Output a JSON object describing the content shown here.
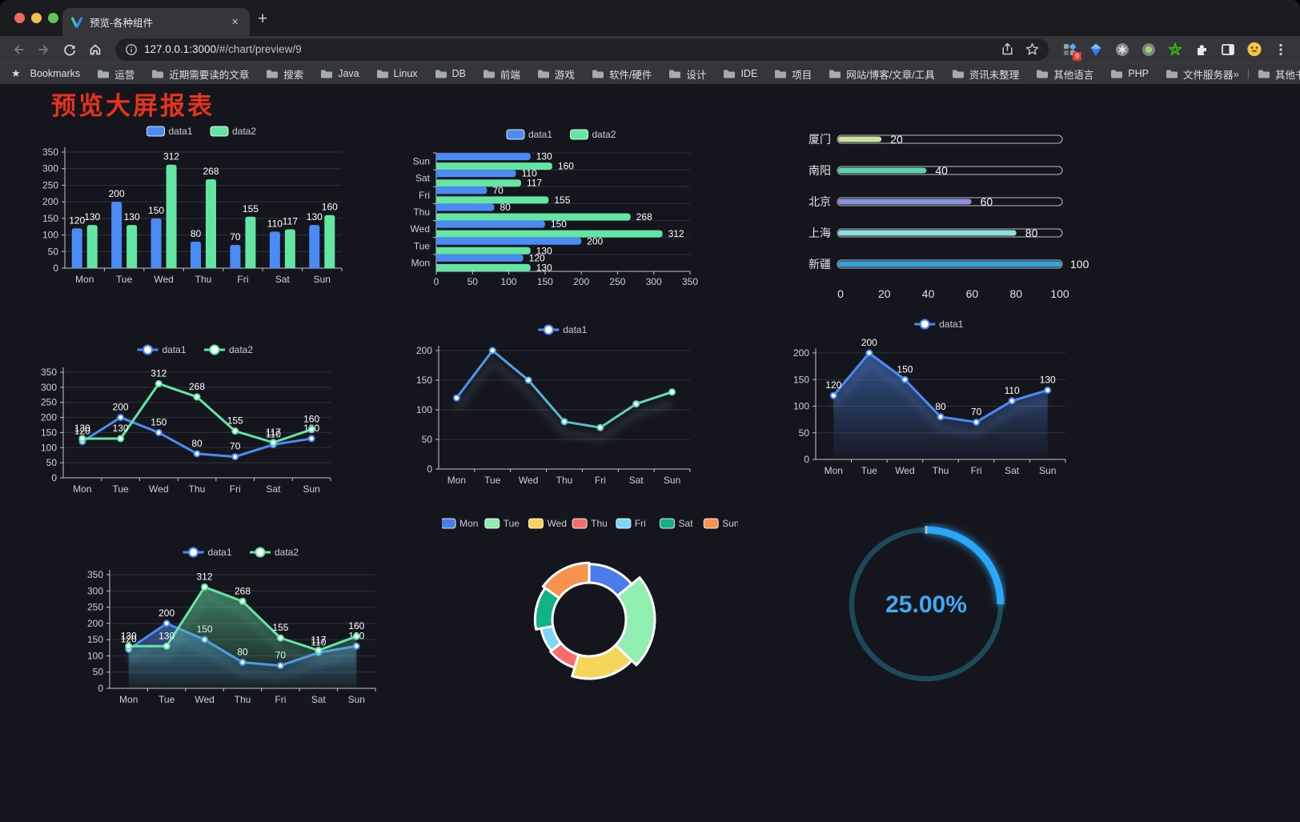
{
  "browser": {
    "tab_title": "预览-各种组件",
    "tab_close": "×",
    "new_tab": "+",
    "url_host": "127.0.0.1:3000",
    "url_path": "/#/chart/preview/9",
    "extension_badge": "9",
    "bookmarks_label": "Bookmarks",
    "bookmarks": [
      "运营",
      "近期需要读的文章",
      "搜索",
      "Java",
      "Linux",
      "DB",
      "前端",
      "游戏",
      "软件/硬件",
      "设计",
      "IDE",
      "项目",
      "网站/博客/文章/工具",
      "资讯未整理",
      "其他语言",
      "PHP",
      "文件服务器"
    ],
    "bookmarks_overflow": "»",
    "other_bookmarks": "其他书签"
  },
  "page": {
    "title": "预览大屏报表",
    "title_color": "#e5331c",
    "background": "#15161d"
  },
  "chart_data": [
    {
      "type": "bar",
      "legend_position": "top",
      "grid": true,
      "categories": [
        "Mon",
        "Tue",
        "Wed",
        "Thu",
        "Fri",
        "Sat",
        "Sun"
      ],
      "series": [
        {
          "name": "data1",
          "color": "#4b8bf5",
          "values": [
            120,
            200,
            150,
            80,
            70,
            110,
            130
          ]
        },
        {
          "name": "data2",
          "color": "#63e6a3",
          "values": [
            130,
            130,
            312,
            268,
            155,
            117,
            160
          ]
        }
      ],
      "ylim": [
        0,
        350
      ],
      "yticks": [
        0,
        50,
        100,
        150,
        200,
        250,
        300,
        350
      ],
      "labels": true
    },
    {
      "type": "hbar",
      "legend_position": "top",
      "grid": true,
      "categories": [
        "Mon",
        "Tue",
        "Wed",
        "Thu",
        "Fri",
        "Sat",
        "Sun"
      ],
      "series": [
        {
          "name": "data1",
          "color": "#4b8bf5",
          "values": [
            120,
            200,
            150,
            80,
            70,
            110,
            130
          ]
        },
        {
          "name": "data2",
          "color": "#63e6a3",
          "values": [
            130,
            130,
            312,
            268,
            155,
            117,
            160
          ]
        }
      ],
      "xlim": [
        0,
        350
      ],
      "xticks": [
        0,
        50,
        100,
        150,
        200,
        250,
        300,
        350
      ],
      "labels": true
    },
    {
      "type": "progress",
      "xlim": [
        0,
        100
      ],
      "xticks": [
        0,
        20,
        40,
        60,
        80,
        100
      ],
      "rows": [
        {
          "label": "厦门",
          "value": 20,
          "color": "#c9e59b"
        },
        {
          "label": "南阳",
          "value": 40,
          "color": "#5fd6a9"
        },
        {
          "label": "北京",
          "value": 60,
          "color": "#8a93d8"
        },
        {
          "label": "上海",
          "value": 80,
          "color": "#8edfde"
        },
        {
          "label": "新疆",
          "value": 100,
          "color": "#36a3db"
        }
      ]
    },
    {
      "type": "line",
      "legend_position": "top",
      "grid": true,
      "categories": [
        "Mon",
        "Tue",
        "Wed",
        "Thu",
        "Fri",
        "Sat",
        "Sun"
      ],
      "series": [
        {
          "name": "data1",
          "color": "#4b8bf5",
          "values": [
            120,
            200,
            150,
            80,
            70,
            110,
            130
          ]
        },
        {
          "name": "data2",
          "color": "#63e6a3",
          "values": [
            130,
            130,
            312,
            268,
            155,
            117,
            160
          ]
        }
      ],
      "ylim": [
        0,
        350
      ],
      "yticks": [
        0,
        50,
        100,
        150,
        200,
        250,
        300,
        350
      ],
      "labels": true
    },
    {
      "type": "line",
      "legend_position": "top",
      "grid": true,
      "categories": [
        "Mon",
        "Tue",
        "Wed",
        "Thu",
        "Fri",
        "Sat",
        "Sun"
      ],
      "series": [
        {
          "name": "data1",
          "gradient": [
            "#4e8cf8",
            "#63e6a3"
          ],
          "values": [
            120,
            200,
            150,
            80,
            70,
            110,
            130
          ],
          "shadow": true
        }
      ],
      "ylim": [
        0,
        200
      ],
      "yticks": [
        0,
        50,
        100,
        150,
        200
      ],
      "labels": false
    },
    {
      "type": "line",
      "legend_position": "top",
      "grid": true,
      "categories": [
        "Mon",
        "Tue",
        "Wed",
        "Thu",
        "Fri",
        "Sat",
        "Sun"
      ],
      "series": [
        {
          "name": "data1",
          "color": "#4b8bf5",
          "values": [
            120,
            200,
            150,
            80,
            70,
            110,
            130
          ],
          "area": true,
          "shadow": true
        }
      ],
      "ylim": [
        0,
        200
      ],
      "yticks": [
        0,
        50,
        100,
        150,
        200
      ],
      "labels": true
    },
    {
      "type": "line",
      "legend_position": "top",
      "grid": true,
      "categories": [
        "Mon",
        "Tue",
        "Wed",
        "Thu",
        "Fri",
        "Sat",
        "Sun"
      ],
      "series": [
        {
          "name": "data1",
          "color": "#4b8bf5",
          "values": [
            120,
            200,
            150,
            80,
            70,
            110,
            130
          ],
          "area": true,
          "shadow": true
        },
        {
          "name": "data2",
          "color": "#63e6a3",
          "values": [
            130,
            130,
            312,
            268,
            155,
            117,
            160
          ],
          "area": true,
          "shadow": true
        }
      ],
      "ylim": [
        0,
        350
      ],
      "yticks": [
        0,
        50,
        100,
        150,
        200,
        250,
        300,
        350
      ],
      "labels": true
    },
    {
      "type": "pie",
      "legend_position": "top",
      "rose": true,
      "categories": [
        "Mon",
        "Tue",
        "Wed",
        "Thu",
        "Fri",
        "Sat",
        "Sun"
      ],
      "values": [
        120,
        200,
        150,
        80,
        70,
        110,
        130
      ],
      "colors": [
        "#4a7cec",
        "#90eeb1",
        "#f6d55c",
        "#f76c6c",
        "#7dd6f6",
        "#12b287",
        "#f8924f"
      ]
    },
    {
      "type": "gauge",
      "value": 25,
      "label": "25.00%",
      "color": "#2ba8f7",
      "track_color": "#1d4a5a",
      "text_color": "#41a9f1"
    }
  ]
}
